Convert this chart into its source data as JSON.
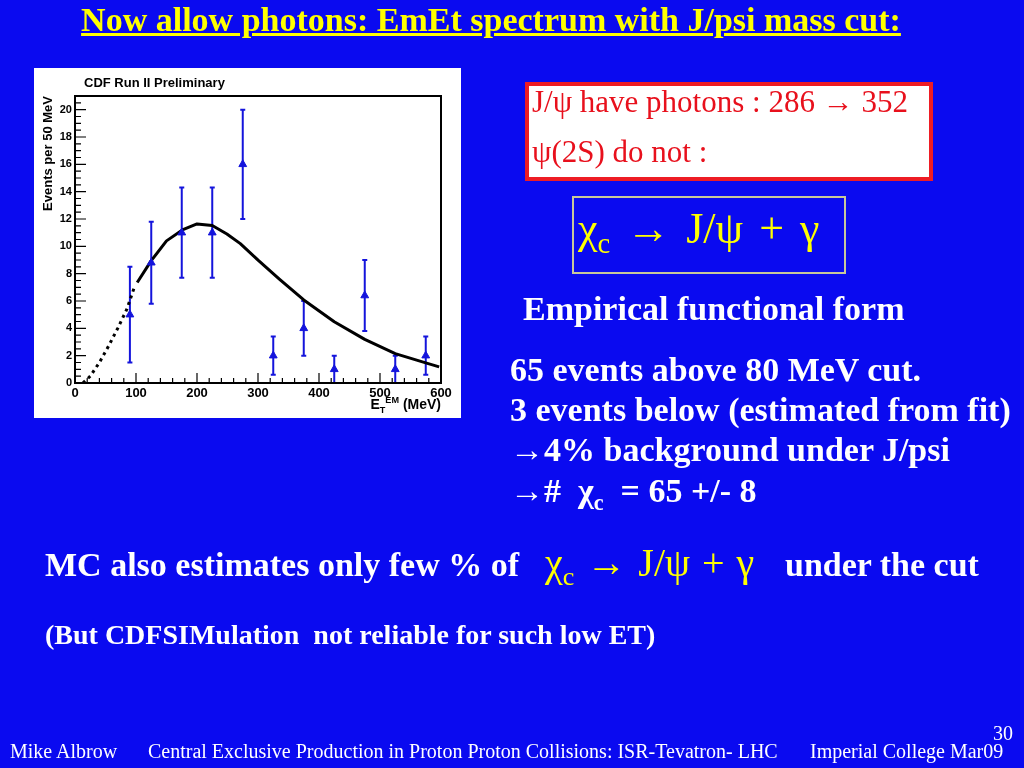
{
  "chart_data": {
    "type": "scatter",
    "title": "Now allow photons: EmEt spectrum with J/psi mass cut:",
    "subtitle": "CDF Run II Preliminary",
    "xlabel": "E$_{T}$$^{EM}$ (MeV)",
    "ylabel": "Events per 50 MeV",
    "xlim": [
      0,
      600
    ],
    "ylim": [
      0,
      21
    ],
    "xticks": [
      0,
      {
        "value": 20,
        "label": null
      },
      {
        "value": 40,
        "label": null
      },
      {
        "value": 60,
        "label": null
      },
      {
        "value": 80,
        "label": null
      },
      100,
      {
        "value": 120,
        "label": null
      },
      {
        "value": 140,
        "label": null
      },
      {
        "value": 160,
        "label": null
      },
      {
        "value": 180,
        "label": null
      },
      200,
      {
        "value": 220,
        "label": null
      },
      {
        "value": 240,
        "label": null
      },
      {
        "value": 260,
        "label": null
      },
      {
        "value": 280,
        "label": null
      },
      300,
      {
        "value": 320,
        "label": null
      },
      {
        "value": 340,
        "label": null
      },
      {
        "value": 360,
        "label": null
      },
      {
        "value": 380,
        "label": null
      },
      400,
      {
        "value": 420,
        "label": null
      },
      {
        "value": 440,
        "label": null
      },
      {
        "value": 460,
        "label": null
      },
      {
        "value": 480,
        "label": null
      },
      500,
      {
        "value": 520,
        "label": null
      },
      {
        "value": 540,
        "label": null
      },
      {
        "value": 560,
        "label": null
      },
      {
        "value": 580,
        "label": null
      },
      600
    ],
    "yticks": [
      0,
      {
        "value": 0.5,
        "label": null
      },
      {
        "value": 1,
        "label": null
      },
      {
        "value": 1.5,
        "label": null
      },
      2,
      {
        "value": 2.5,
        "label": null
      },
      {
        "value": 3,
        "label": null
      },
      {
        "value": 3.5,
        "label": null
      },
      4,
      {
        "value": 4.5,
        "label": null
      },
      {
        "value": 5,
        "label": null
      },
      {
        "value": 5.5,
        "label": null
      },
      6,
      {
        "value": 6.5,
        "label": null
      },
      {
        "value": 7,
        "label": null
      },
      {
        "value": 7.5,
        "label": null
      },
      8,
      {
        "value": 8.5,
        "label": null
      },
      {
        "value": 9,
        "label": null
      },
      {
        "value": 9.5,
        "label": null
      },
      10,
      {
        "value": 10.5,
        "label": null
      },
      {
        "value": 11,
        "label": null
      },
      {
        "value": 11.5,
        "label": null
      },
      12,
      {
        "value": 12.5,
        "label": null
      },
      {
        "value": 13,
        "label": null
      },
      {
        "value": 13.5,
        "label": null
      },
      14,
      {
        "value": 14.5,
        "label": null
      },
      {
        "value": 15,
        "label": null
      },
      {
        "value": 15.5,
        "label": null
      },
      16,
      {
        "value": 16.5,
        "label": null
      },
      {
        "value": 17,
        "label": null
      },
      {
        "value": 17.5,
        "label": null
      },
      18,
      {
        "value": 18.5,
        "label": null
      },
      {
        "value": 19,
        "label": null
      },
      {
        "value": 19.5,
        "label": null
      },
      20,
      {
        "value": 20.5,
        "label": null
      }
    ],
    "series": [
      {
        "color": "#1414dc",
        "marker": "triangle",
        "x": [
          90,
          125,
          175,
          225,
          275,
          325,
          375,
          425,
          475,
          525,
          575
        ],
        "values": [
          5,
          8.8,
          11,
          11,
          16,
          2,
          4,
          1,
          6.4,
          1,
          2
        ],
        "errors": [
          3.5,
          3,
          3.3,
          3.3,
          4,
          1.4,
          2,
          1,
          2.6,
          1,
          1.4
        ]
      },
      {
        "type": "line",
        "color": "#000000",
        "marker": "none",
        "line_style": "solid",
        "x": [
          102,
          125,
          150,
          176,
          200,
          225,
          249,
          271,
          301,
          335,
          375,
          425,
          475,
          525,
          575,
          597
        ],
        "values": [
          7.35,
          8.95,
          10.4,
          11.2,
          11.64,
          11.52,
          10.9,
          10.2,
          8.95,
          7.6,
          6.08,
          4.48,
          3.19,
          2.15,
          1.47,
          1.18
        ]
      },
      {
        "type": "line",
        "color": "#000000",
        "marker": "none",
        "line_style": "dashed",
        "x": [
          13,
          25,
          40,
          55,
          70,
          85,
          98
        ],
        "values": [
          0,
          0.5,
          1.5,
          2.7,
          4.0,
          5.4,
          7.1
        ]
      }
    ],
    "annotations": [
      "J/ψ have photons : 286 → 352",
      "ψ(2S) do not :",
      "χ$_{c}$ → J/ψ + γ",
      "Empirical functional form",
      "65 events above 80 MeV cut.",
      "3 events below (estimated from fit)",
      "→4% background under J/psi",
      "→#  χ$_{c}$  = 65 +/- 8",
      "MC also estimates only few % of",
      "χ$_{c}$ → J/ψ + γ",
      "under the cut",
      "(But CDFSIMulation  not reliable for such low ET)",
      "Mike Albrow",
      "Central Exclusive Production in Proton Proton Collisions: ISR-Tevatron- LHC",
      "Imperial College Mar09",
      "30"
    ]
  }
}
